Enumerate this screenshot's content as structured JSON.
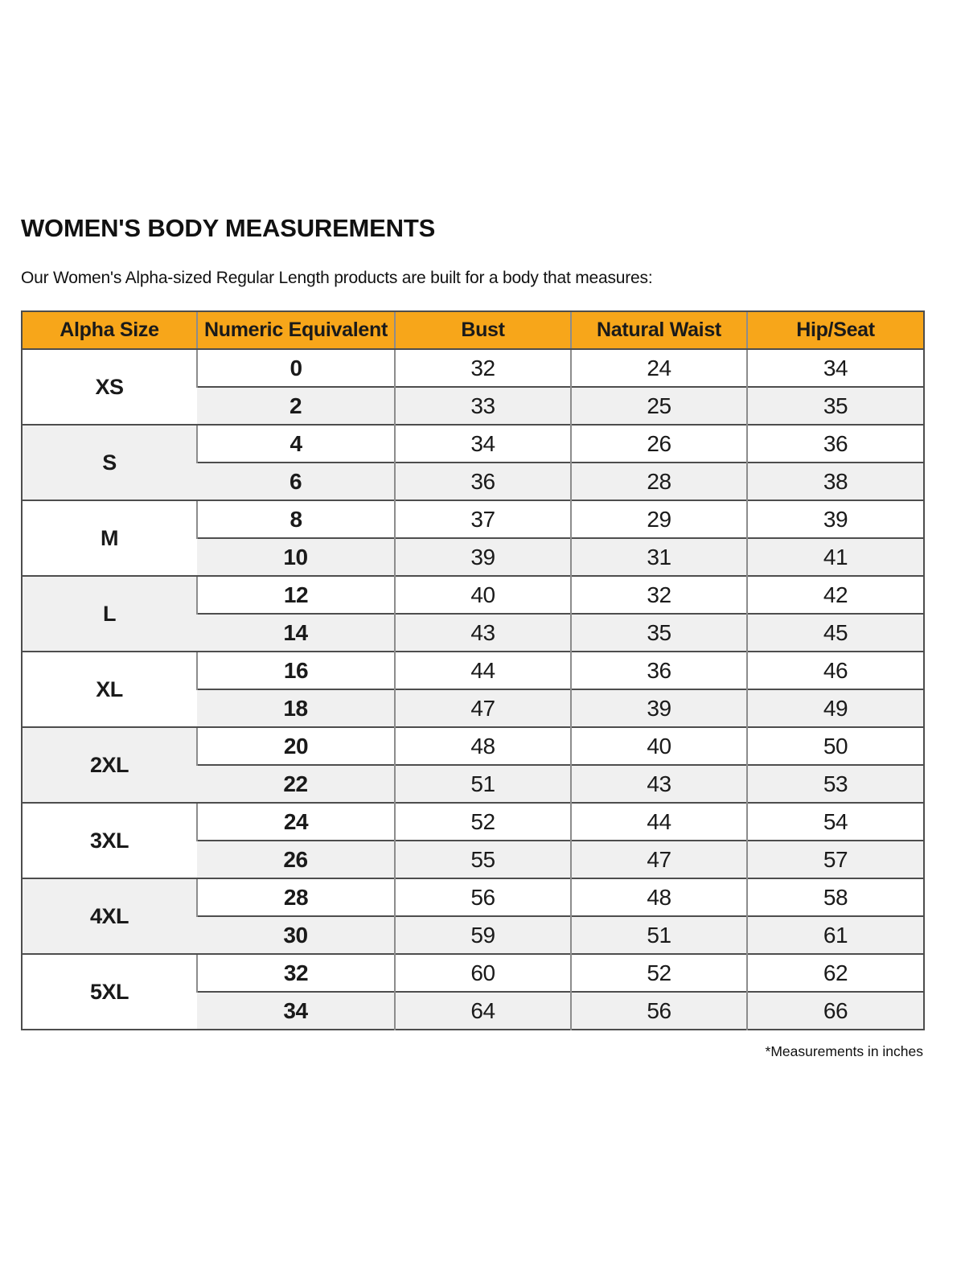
{
  "page": {
    "title": "WOMEN'S BODY MEASUREMENTS",
    "subtitle": "Our Women's Alpha-sized Regular Length products are built for a body that measures:",
    "footnote": "*Measurements in inches"
  },
  "colors": {
    "header_bg": "#F7A61A",
    "alt_row_bg": "#F0F0F0",
    "border_dark": "#4D4D4D",
    "border_light": "#8C8C8C",
    "text": "#1A1A1A"
  },
  "table": {
    "headers": [
      "Alpha Size",
      "Numeric Equivalent",
      "Bust",
      "Natural Waist",
      "Hip/Seat"
    ],
    "units": "inches",
    "groups": [
      {
        "alpha": "XS",
        "rows": [
          {
            "numeric": "0",
            "bust": "32",
            "waist": "24",
            "hip": "34"
          },
          {
            "numeric": "2",
            "bust": "33",
            "waist": "25",
            "hip": "35"
          }
        ]
      },
      {
        "alpha": "S",
        "rows": [
          {
            "numeric": "4",
            "bust": "34",
            "waist": "26",
            "hip": "36"
          },
          {
            "numeric": "6",
            "bust": "36",
            "waist": "28",
            "hip": "38"
          }
        ]
      },
      {
        "alpha": "M",
        "rows": [
          {
            "numeric": "8",
            "bust": "37",
            "waist": "29",
            "hip": "39"
          },
          {
            "numeric": "10",
            "bust": "39",
            "waist": "31",
            "hip": "41"
          }
        ]
      },
      {
        "alpha": "L",
        "rows": [
          {
            "numeric": "12",
            "bust": "40",
            "waist": "32",
            "hip": "42"
          },
          {
            "numeric": "14",
            "bust": "43",
            "waist": "35",
            "hip": "45"
          }
        ]
      },
      {
        "alpha": "XL",
        "rows": [
          {
            "numeric": "16",
            "bust": "44",
            "waist": "36",
            "hip": "46"
          },
          {
            "numeric": "18",
            "bust": "47",
            "waist": "39",
            "hip": "49"
          }
        ]
      },
      {
        "alpha": "2XL",
        "rows": [
          {
            "numeric": "20",
            "bust": "48",
            "waist": "40",
            "hip": "50"
          },
          {
            "numeric": "22",
            "bust": "51",
            "waist": "43",
            "hip": "53"
          }
        ]
      },
      {
        "alpha": "3XL",
        "rows": [
          {
            "numeric": "24",
            "bust": "52",
            "waist": "44",
            "hip": "54"
          },
          {
            "numeric": "26",
            "bust": "55",
            "waist": "47",
            "hip": "57"
          }
        ]
      },
      {
        "alpha": "4XL",
        "rows": [
          {
            "numeric": "28",
            "bust": "56",
            "waist": "48",
            "hip": "58"
          },
          {
            "numeric": "30",
            "bust": "59",
            "waist": "51",
            "hip": "61"
          }
        ]
      },
      {
        "alpha": "5XL",
        "rows": [
          {
            "numeric": "32",
            "bust": "60",
            "waist": "52",
            "hip": "62"
          },
          {
            "numeric": "34",
            "bust": "64",
            "waist": "56",
            "hip": "66"
          }
        ]
      }
    ]
  }
}
